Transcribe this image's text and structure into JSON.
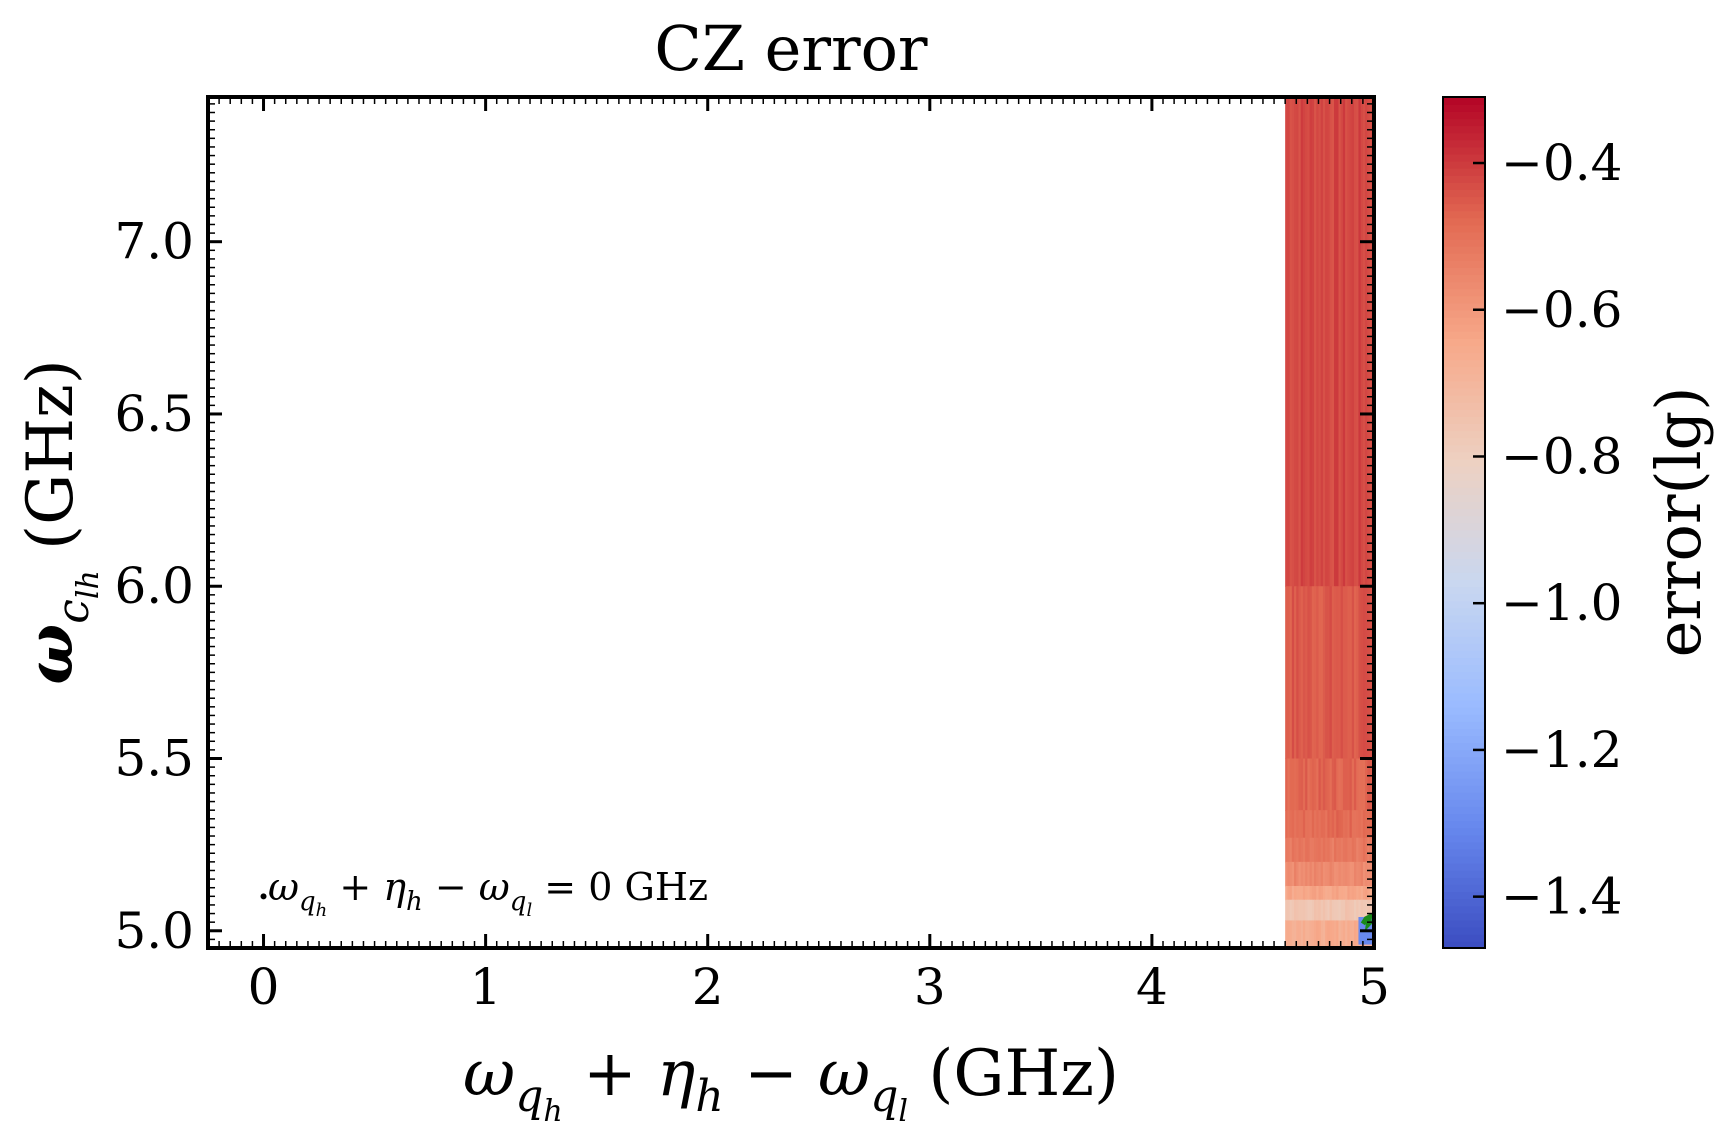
{
  "chart_data": {
    "type": "heatmap",
    "title": "CZ error",
    "xlabel": {
      "main": "ω",
      "sub1": "q",
      "sub1sub": "h",
      "plus": " + ",
      "eta": "η",
      "etasub": "h",
      "minus": " − ",
      "main2": "ω",
      "sub2": "q",
      "sub2sub": "l",
      "unit": " (GHz)"
    },
    "ylabel": {
      "main": "ω",
      "sub": "c",
      "subsub": "lh",
      "unit": " (GHz)"
    },
    "colorbar_label": "error(lg)",
    "xlim": [
      -0.25,
      5.0
    ],
    "ylim": [
      4.95,
      7.42
    ],
    "x_ticks": [
      0,
      1,
      2,
      3,
      4,
      5
    ],
    "x_tick_labels": [
      "0",
      "1",
      "2",
      "3",
      "4",
      "5"
    ],
    "y_ticks": [
      5.0,
      5.5,
      6.0,
      6.5,
      7.0
    ],
    "y_tick_labels": [
      "5.0",
      "5.5",
      "6.0",
      "6.5",
      "7.0"
    ],
    "colorbar_ticks": [
      -0.4,
      -0.6,
      -0.8,
      -1.0,
      -1.2,
      -1.4
    ],
    "colorbar_tick_labels": [
      "−0.4",
      "−0.6",
      "−0.8",
      "−1.0",
      "−1.2",
      "−1.4"
    ],
    "colorbar_range": [
      -1.47,
      -0.31
    ],
    "colormap": "coolwarm",
    "colormap_stops": [
      "#3b4cc0",
      "#6788ee",
      "#9abbff",
      "#c9d7f0",
      "#edd1c2",
      "#f7a889",
      "#e26952",
      "#b40426"
    ],
    "filled_x_range": [
      4.6,
      5.0
    ],
    "filled_y_range": [
      4.95,
      7.42
    ],
    "bands": [
      {
        "y0": 6.0,
        "y1": 7.42,
        "error_lg": -0.42
      },
      {
        "y0": 5.5,
        "y1": 6.0,
        "error_lg": -0.45
      },
      {
        "y0": 5.35,
        "y1": 5.5,
        "error_lg": -0.47
      },
      {
        "y0": 5.27,
        "y1": 5.35,
        "error_lg": -0.48
      },
      {
        "y0": 5.2,
        "y1": 5.27,
        "error_lg": -0.52
      },
      {
        "y0": 5.13,
        "y1": 5.2,
        "error_lg": -0.56
      },
      {
        "y0": 5.09,
        "y1": 5.13,
        "error_lg": -0.64
      },
      {
        "y0": 5.03,
        "y1": 5.09,
        "error_lg": -0.76
      },
      {
        "y0": 4.95,
        "y1": 5.03,
        "error_lg": -0.66
      }
    ],
    "low_error_corner": {
      "x0": 4.93,
      "x1": 5.0,
      "y0": 4.96,
      "y1": 5.04,
      "error_lg": -1.3
    },
    "contour_color": "#1a8a1a",
    "contour_points": [
      {
        "x": 4.95,
        "y": 5.02
      },
      {
        "x": 4.965,
        "y": 5.035
      },
      {
        "x": 4.98,
        "y": 5.04
      },
      {
        "x": 4.975,
        "y": 5.02
      },
      {
        "x": 4.99,
        "y": 5.03
      }
    ],
    "marker_point": {
      "x": 0.0,
      "y": 5.1
    },
    "annotation": {
      "main": "ω",
      "sub1": "q",
      "sub1sub": "h",
      "plus": " + ",
      "eta": "η",
      "etasub": "h",
      "minus": " − ",
      "main2": "ω",
      "sub2": "q",
      "sub2sub": "l",
      "eq": " = 0 GHz"
    },
    "grid": false
  }
}
